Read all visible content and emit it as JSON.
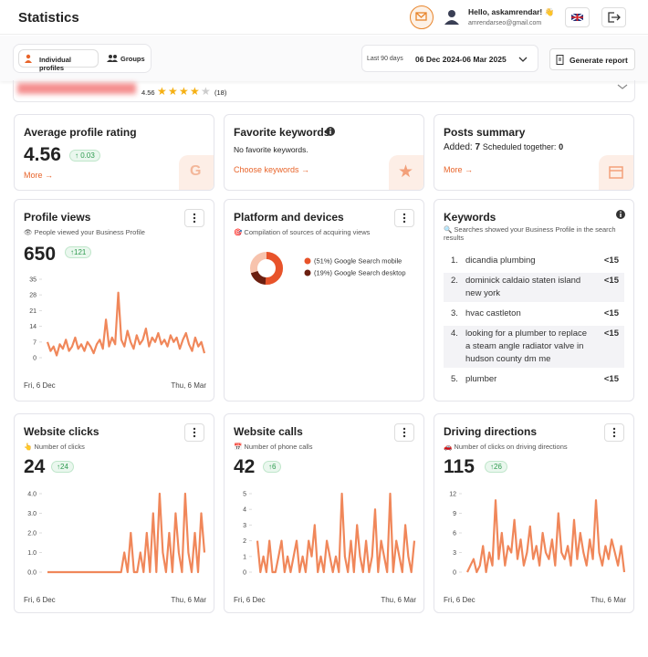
{
  "header": {
    "title": "Statistics",
    "greeting": "Hello, askamrendar! 👋",
    "email": "amrendarseo@gmail.com"
  },
  "toolbar": {
    "tabs": [
      "Individual profiles",
      "Groups"
    ],
    "period_label": "Last 90 days",
    "period": "06 Dec 2024-06 Mar 2025",
    "report_button": "Generate report"
  },
  "profile": {
    "rating": 4.56,
    "reviews": "(18)"
  },
  "cards": {
    "rating": {
      "title": "Average profile rating",
      "value": 4.56,
      "change": 0.03,
      "link": "More →"
    },
    "favorite_keywords": {
      "title": "Favorite keywords",
      "text": "No favorite keywords.",
      "link": "Choose keywords →"
    },
    "posts": {
      "title": "Posts summary",
      "added_label": "Added:",
      "added": 7,
      "scheduled_label": "Scheduled together:",
      "scheduled": 0,
      "link": "More →"
    },
    "profile_views": {
      "type": "line",
      "title": "Profile views",
      "subtitle": "👁 People viewed your Business Profile",
      "total": 650,
      "change": 121,
      "color": "#f0875a",
      "ylim": [
        0,
        35
      ],
      "yticks": [
        0,
        7,
        14,
        21,
        28,
        35
      ],
      "x_labels": [
        "Fri, 6 Dec",
        "Thu, 6 Mar"
      ],
      "values": [
        7,
        3,
        5,
        1,
        6,
        4,
        8,
        3,
        5,
        9,
        4,
        6,
        3,
        7,
        5,
        2,
        6,
        8,
        4,
        17,
        5,
        9,
        6,
        29,
        8,
        5,
        12,
        7,
        4,
        10,
        6,
        8,
        13,
        5,
        9,
        7,
        11,
        6,
        8,
        5,
        10,
        7,
        9,
        4,
        8,
        11,
        6,
        3,
        9,
        5,
        7,
        2
      ]
    },
    "platform": {
      "type": "pie",
      "title": "Platform and devices",
      "subtitle": "🎯 Compilation of sources of acquiring views",
      "categories": [
        "Google Search mobile",
        "Google Search desktop"
      ],
      "values": [
        51,
        19
      ],
      "value_labels": [
        "(51%)",
        "(19%)"
      ],
      "colors": [
        "#e8532a",
        "#6b1f10"
      ]
    },
    "keywords": {
      "title": "Keywords",
      "subtitle": "🔍 Searches showed your Business Profile in the search results",
      "items": [
        {
          "rank": "1.",
          "keyword": "dicandia plumbing",
          "value": "<15"
        },
        {
          "rank": "2.",
          "keyword": "dominick caldaio staten island new york",
          "value": "<15"
        },
        {
          "rank": "3.",
          "keyword": "hvac castleton",
          "value": "<15"
        },
        {
          "rank": "4.",
          "keyword": "looking for a plumber to replace a steam angle radiator valve in hudson county dm me",
          "value": "<15"
        },
        {
          "rank": "5.",
          "keyword": "plumber",
          "value": "<15"
        }
      ]
    },
    "website_clicks": {
      "type": "line",
      "title": "Website clicks",
      "subtitle": "👆 Number of clicks",
      "total": 24,
      "change": 24,
      "color": "#f0875a",
      "ylim": [
        0,
        4
      ],
      "yticks": [
        {
          "value": 0,
          "label": "0.0"
        },
        {
          "value": 1,
          "label": "1.0"
        },
        {
          "value": 2,
          "label": "2.0"
        },
        {
          "value": 3,
          "label": "3.0"
        },
        {
          "value": 4,
          "label": "4.0"
        }
      ],
      "x_labels": [
        "Fri, 6 Dec",
        "Thu, 6 Mar"
      ],
      "values": [
        0,
        0,
        0,
        0,
        0,
        0,
        0,
        0,
        0,
        0,
        0,
        0,
        0,
        0,
        0,
        0,
        0,
        0,
        0,
        0,
        0,
        0,
        0,
        0,
        1,
        0,
        2,
        0,
        0,
        1,
        0,
        2,
        0,
        3,
        0,
        4,
        1,
        0,
        2,
        0,
        3,
        1,
        0,
        4,
        1,
        0,
        2,
        0,
        3,
        1
      ]
    },
    "website_calls": {
      "type": "line",
      "title": "Website calls",
      "subtitle": "📅 Number of phone calls",
      "total": 42,
      "change": 6,
      "color": "#f0875a",
      "ylim": [
        0,
        5
      ],
      "yticks": [
        0,
        1,
        2,
        3,
        4,
        5
      ],
      "x_labels": [
        "Fri, 6 Dec",
        "Thu, 6 Mar"
      ],
      "values": [
        2,
        0,
        1,
        0,
        2,
        0,
        0,
        1,
        2,
        0,
        1,
        0,
        1,
        2,
        0,
        1,
        0,
        2,
        1,
        3,
        0,
        1,
        0,
        2,
        1,
        0,
        1,
        0,
        5,
        1,
        0,
        2,
        0,
        3,
        1,
        0,
        2,
        0,
        1,
        4,
        0,
        2,
        1,
        0,
        5,
        0,
        2,
        1,
        0,
        3,
        1,
        0,
        2
      ]
    },
    "driving_directions": {
      "type": "line",
      "title": "Driving directions",
      "subtitle": "🚗 Number of clicks on driving directions",
      "total": 115,
      "change": 26,
      "color": "#f0875a",
      "ylim": [
        0,
        12
      ],
      "yticks": [
        0,
        3,
        6,
        9,
        12
      ],
      "x_labels": [
        "Fri, 6 Dec",
        "Thu, 6 Mar"
      ],
      "values": [
        0,
        1,
        2,
        0,
        1,
        4,
        0,
        3,
        1,
        11,
        2,
        6,
        1,
        4,
        3,
        8,
        2,
        5,
        1,
        3,
        7,
        2,
        4,
        1,
        6,
        3,
        2,
        5,
        1,
        9,
        3,
        2,
        4,
        1,
        8,
        2,
        6,
        3,
        1,
        5,
        2,
        11,
        3,
        1,
        4,
        2,
        5,
        3,
        1,
        4,
        0
      ]
    }
  }
}
